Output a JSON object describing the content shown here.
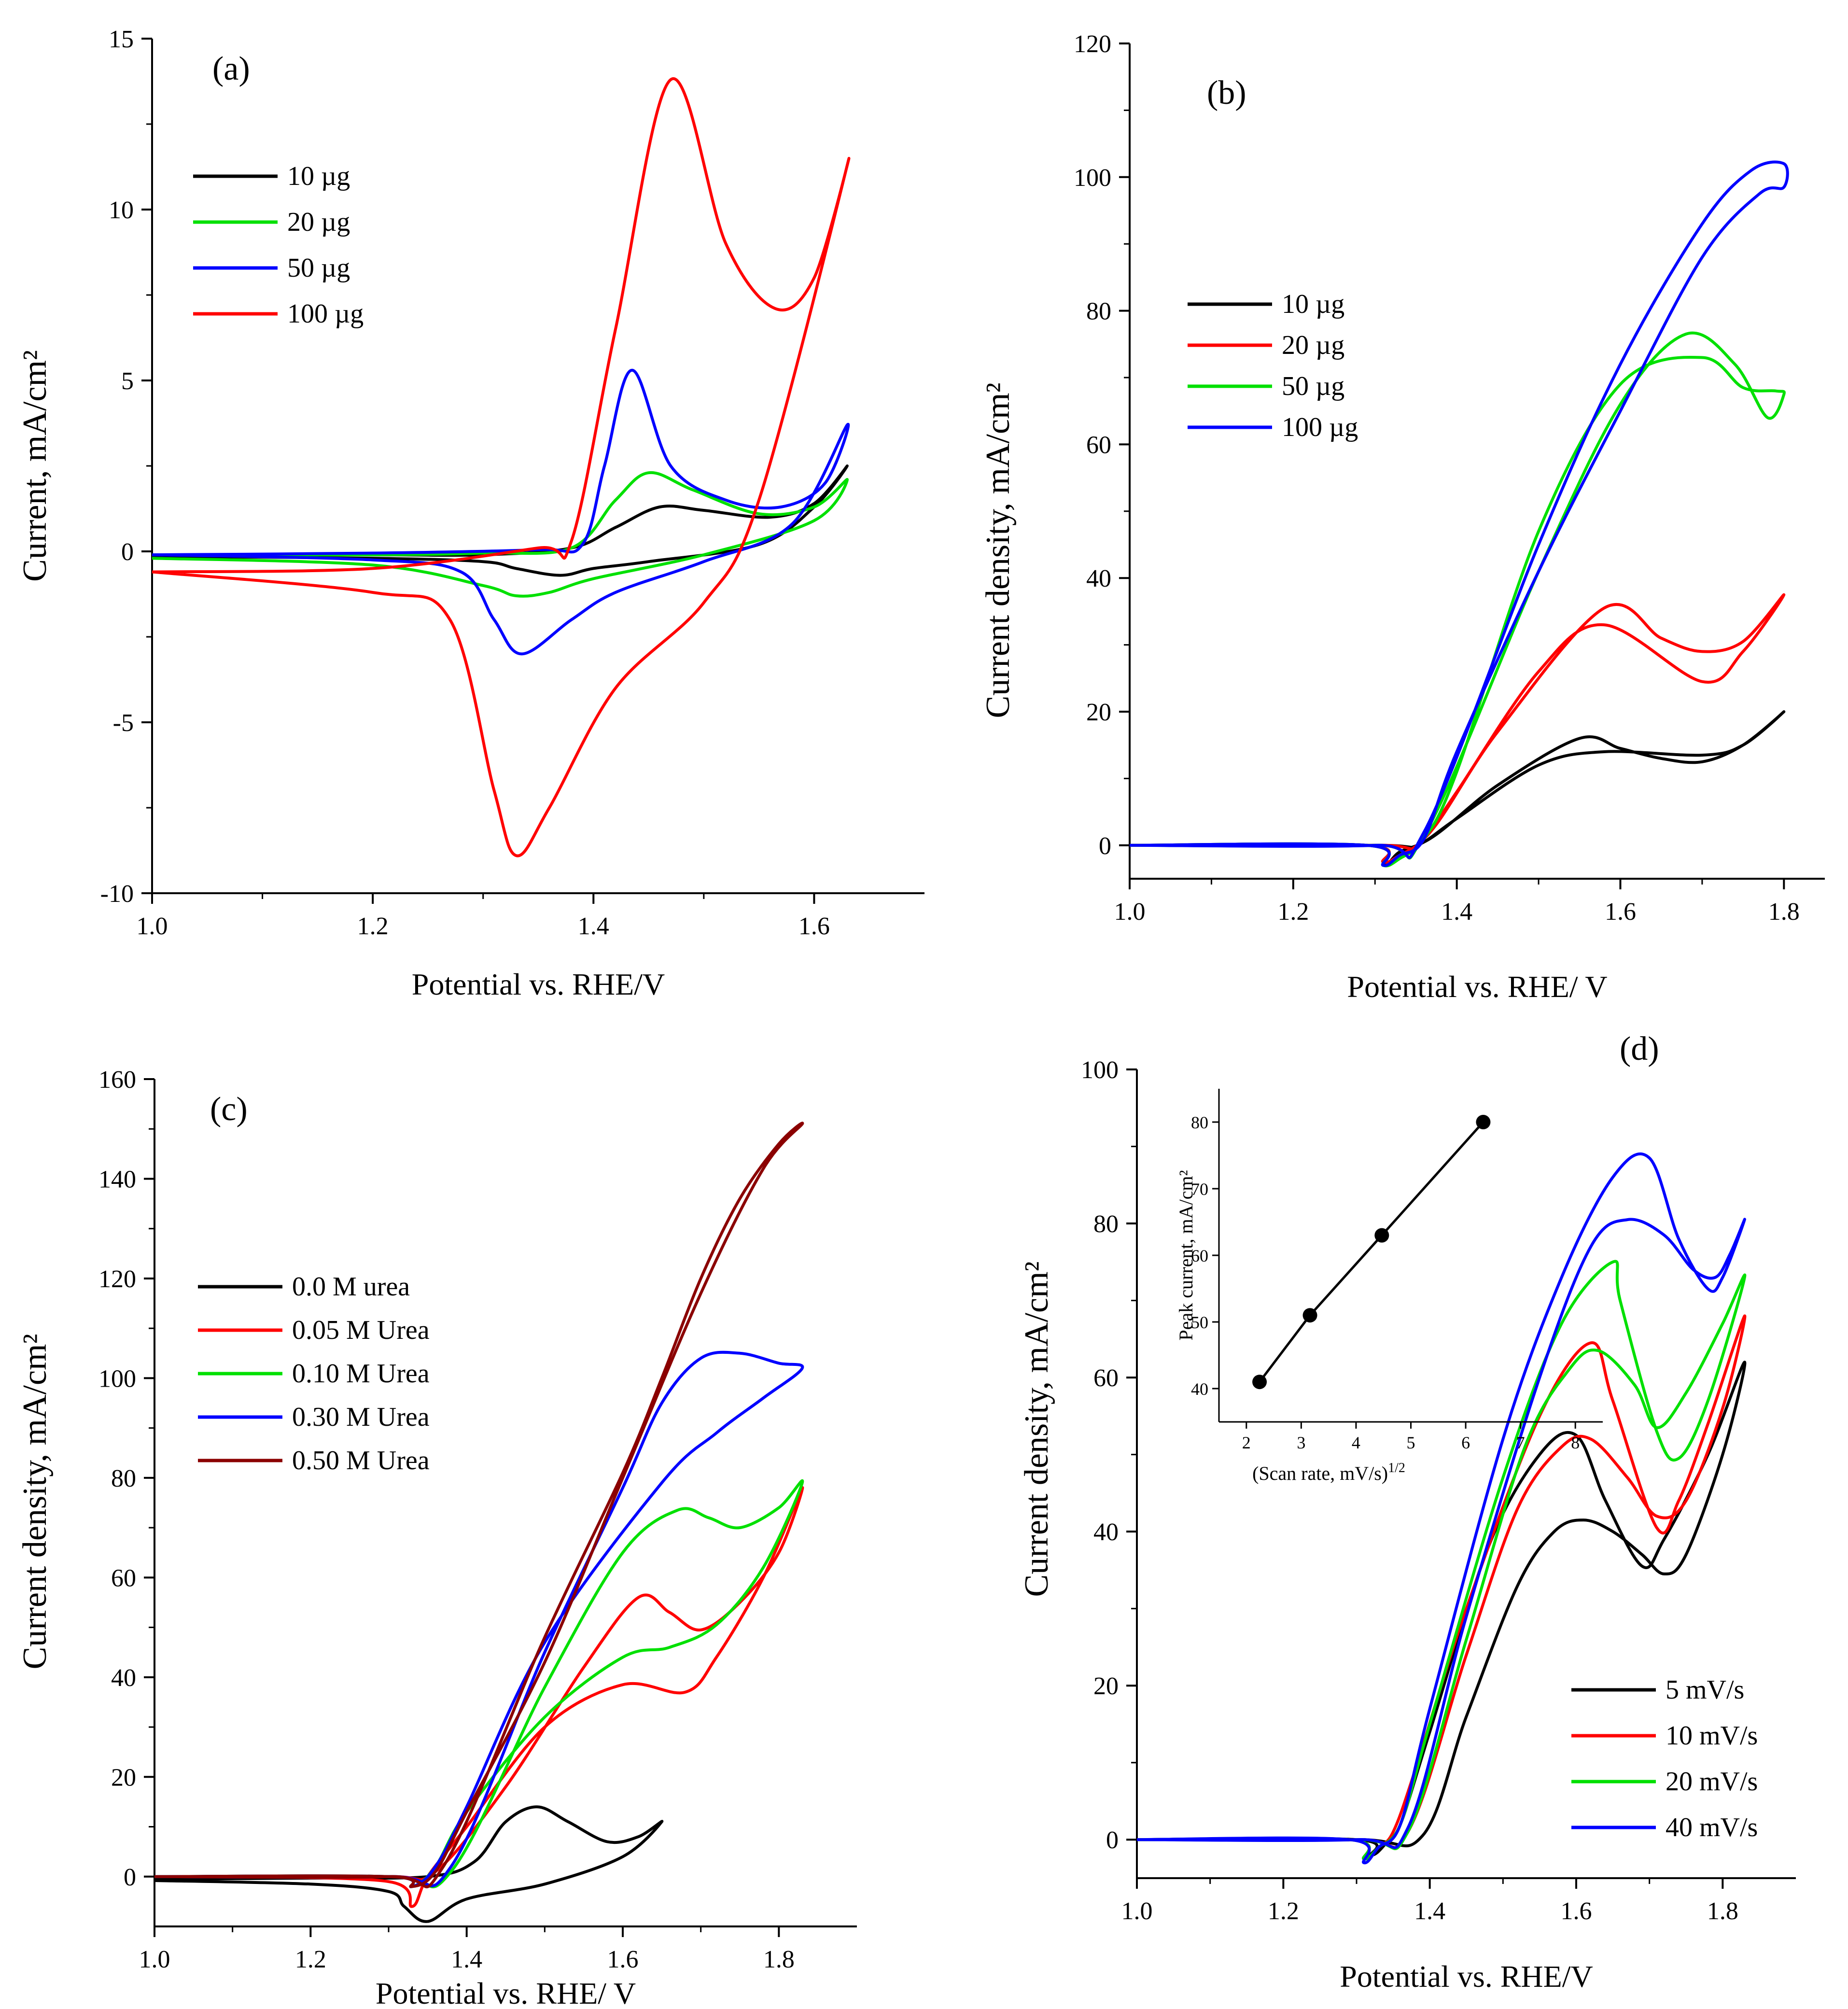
{
  "chart_data": [
    {
      "panel": "(a)",
      "type": "line",
      "title": "",
      "xlabel": "Potential vs. RHE/V",
      "ylabel": "Current, mA/cm²",
      "xlim": [
        1.0,
        1.7
      ],
      "ylim": [
        -10,
        15
      ],
      "xticks": [
        1.0,
        1.2,
        1.4,
        1.6
      ],
      "xtick_labels": [
        "1.0",
        "1.2",
        "1.4",
        "1.6"
      ],
      "yticks": [
        -10,
        -5,
        0,
        5,
        10,
        15
      ],
      "ytick_labels": [
        "-10",
        "-5",
        "0",
        "5",
        "10",
        "15"
      ],
      "legend": "top-left",
      "series": [
        {
          "name": "10 µg",
          "color": "#000000",
          "x": [
            1.0,
            1.2,
            1.3,
            1.38,
            1.42,
            1.46,
            1.5,
            1.56,
            1.6,
            1.63,
            1.6,
            1.55,
            1.45,
            1.4,
            1.37,
            1.33,
            1.3,
            1.2,
            1.0
          ],
          "y": [
            -0.1,
            -0.1,
            -0.1,
            0.1,
            0.7,
            1.3,
            1.2,
            1.0,
            1.4,
            2.5,
            1.3,
            0.2,
            -0.3,
            -0.5,
            -0.7,
            -0.5,
            -0.3,
            -0.2,
            -0.15
          ]
        },
        {
          "name": "20 µg",
          "color": "#00e000",
          "x": [
            1.0,
            1.2,
            1.3,
            1.38,
            1.42,
            1.45,
            1.49,
            1.55,
            1.6,
            1.63,
            1.6,
            1.5,
            1.4,
            1.36,
            1.33,
            1.3,
            1.2,
            1.0
          ],
          "y": [
            -0.1,
            -0.1,
            -0.05,
            0.1,
            1.5,
            2.3,
            1.8,
            1.1,
            1.3,
            2.1,
            0.9,
            -0.1,
            -0.8,
            -1.2,
            -1.3,
            -1.0,
            -0.4,
            -0.2
          ]
        },
        {
          "name": "50 µg",
          "color": "#0000ff",
          "x": [
            1.0,
            1.2,
            1.35,
            1.39,
            1.41,
            1.435,
            1.47,
            1.52,
            1.57,
            1.61,
            1.63,
            1.58,
            1.5,
            1.42,
            1.38,
            1.335,
            1.31,
            1.28,
            1.2,
            1.0
          ],
          "y": [
            -0.1,
            -0.05,
            0.05,
            0.2,
            2.5,
            5.3,
            2.5,
            1.5,
            1.3,
            2.0,
            3.7,
            0.8,
            -0.3,
            -1.2,
            -2.0,
            -3.0,
            -2.0,
            -0.6,
            -0.25,
            -0.1
          ]
        },
        {
          "name": "100 µg",
          "color": "#ff0000",
          "x": [
            1.0,
            1.2,
            1.35,
            1.38,
            1.42,
            1.47,
            1.52,
            1.565,
            1.6,
            1.63,
            1.55,
            1.5,
            1.42,
            1.36,
            1.33,
            1.31,
            1.27,
            1.2,
            1.0
          ],
          "y": [
            -0.6,
            -0.5,
            0.1,
            0.3,
            6.5,
            13.8,
            9.0,
            7.1,
            8.0,
            11.3,
            1.5,
            -1.5,
            -4.0,
            -7.5,
            -8.9,
            -7.0,
            -2.0,
            -1.2,
            -0.6
          ]
        }
      ]
    },
    {
      "panel": "(b)",
      "type": "line",
      "title": "",
      "xlabel": "Potential vs. RHE/ V",
      "ylabel": "Current density, mA/cm²",
      "xlim": [
        1.0,
        1.85
      ],
      "ylim": [
        -5,
        120
      ],
      "xticks": [
        1.0,
        1.2,
        1.4,
        1.6,
        1.8
      ],
      "xtick_labels": [
        "1.0",
        "1.2",
        "1.4",
        "1.6",
        "1.8"
      ],
      "yticks": [
        0,
        20,
        40,
        60,
        80,
        100,
        120
      ],
      "ytick_labels": [
        "0",
        "20",
        "40",
        "60",
        "80",
        "100",
        "120"
      ],
      "legend": "center-left",
      "series": [
        {
          "name": "10 µg",
          "color": "#000000",
          "x": [
            1.0,
            1.3,
            1.36,
            1.45,
            1.55,
            1.6,
            1.65,
            1.7,
            1.75,
            1.8,
            1.75,
            1.7,
            1.58,
            1.5,
            1.4,
            1.36,
            1.33,
            1.31,
            1.29,
            1.0
          ],
          "y": [
            0,
            0,
            0.5,
            9,
            16,
            14.5,
            13,
            12.5,
            15,
            20,
            15,
            13.5,
            14,
            12,
            4,
            0.5,
            -1,
            -3,
            0,
            0
          ]
        },
        {
          "name": "20 µg",
          "color": "#ff0000",
          "x": [
            1.0,
            1.3,
            1.36,
            1.45,
            1.58,
            1.65,
            1.7,
            1.75,
            1.8,
            1.75,
            1.7,
            1.58,
            1.5,
            1.4,
            1.36,
            1.33,
            1.31,
            1.29,
            1.0
          ],
          "y": [
            0,
            0,
            1,
            17,
            35.5,
            31,
            29,
            30.5,
            37.5,
            29,
            24.5,
            33,
            26,
            8,
            1,
            -1.5,
            -2.5,
            0,
            0
          ]
        },
        {
          "name": "50 µg",
          "color": "#00e000",
          "x": [
            1.0,
            1.3,
            1.36,
            1.5,
            1.6,
            1.68,
            1.74,
            1.78,
            1.8,
            1.79,
            1.75,
            1.7,
            1.6,
            1.5,
            1.4,
            1.36,
            1.33,
            1.31,
            1.29,
            1.0
          ],
          "y": [
            0,
            0,
            1.5,
            41,
            66,
            76.5,
            72,
            64,
            67.5,
            68,
            68.5,
            73,
            69,
            47,
            11,
            1,
            -2,
            -3,
            0,
            0
          ]
        },
        {
          "name": "100 µg",
          "color": "#0000ff",
          "x": [
            1.0,
            1.3,
            1.36,
            1.5,
            1.6,
            1.7,
            1.76,
            1.8,
            1.8,
            1.77,
            1.7,
            1.6,
            1.5,
            1.4,
            1.36,
            1.33,
            1.31,
            1.29,
            1.0
          ],
          "y": [
            0,
            0,
            2,
            45,
            72,
            93,
            101,
            102,
            98.5,
            97.5,
            88,
            65,
            41,
            14,
            1,
            -1.5,
            -3,
            0,
            0
          ]
        }
      ]
    },
    {
      "panel": "(c)",
      "type": "line",
      "title": "",
      "xlabel": "Potential vs. RHE/ V",
      "ylabel": "Current density, mA/cm²",
      "xlim": [
        1.0,
        1.9
      ],
      "ylim": [
        -10,
        160
      ],
      "xticks": [
        1.0,
        1.2,
        1.4,
        1.6,
        1.8
      ],
      "xtick_labels": [
        "1.0",
        "1.2",
        "1.4",
        "1.6",
        "1.8"
      ],
      "yticks": [
        0,
        20,
        40,
        60,
        80,
        100,
        120,
        140,
        160
      ],
      "ytick_labels": [
        "0",
        "20",
        "40",
        "60",
        "80",
        "100",
        "120",
        "140",
        "160"
      ],
      "legend": "center-left",
      "series": [
        {
          "name": "0.0 M urea",
          "color": "#000000",
          "x": [
            1.0,
            1.2,
            1.35,
            1.41,
            1.45,
            1.49,
            1.53,
            1.58,
            1.62,
            1.65,
            1.6,
            1.5,
            1.4,
            1.35,
            1.32,
            1.3,
            1.2,
            1.0
          ],
          "y": [
            -0.5,
            -0.3,
            0,
            3,
            11,
            14,
            11,
            7,
            8,
            11,
            4,
            -1.5,
            -4.5,
            -9,
            -6,
            -3,
            -1.5,
            -0.8
          ]
        },
        {
          "name": "0.05 M Urea",
          "color": "#ff0000",
          "x": [
            1.08,
            1.3,
            1.36,
            1.45,
            1.55,
            1.62,
            1.66,
            1.7,
            1.75,
            1.8,
            1.83,
            1.78,
            1.72,
            1.68,
            1.6,
            1.5,
            1.4,
            1.35,
            1.33,
            1.3,
            1.08
          ],
          "y": [
            0,
            0,
            1,
            18,
            42,
            56,
            53,
            49.5,
            55,
            65,
            78,
            60,
            44,
            37,
            38.5,
            30,
            10,
            0,
            -6,
            -1,
            0
          ]
        },
        {
          "name": "0.10 M Urea",
          "color": "#00e000",
          "x": [
            1.0,
            1.3,
            1.38,
            1.5,
            1.6,
            1.67,
            1.71,
            1.75,
            1.8,
            1.83,
            1.78,
            1.72,
            1.66,
            1.6,
            1.5,
            1.4,
            1.36,
            1.33,
            1.3,
            1.0
          ],
          "y": [
            0,
            0,
            1,
            38,
            65,
            73.5,
            72,
            70,
            74,
            79,
            62,
            50.5,
            46,
            44,
            32,
            13,
            2,
            -2,
            0,
            0
          ]
        },
        {
          "name": "0.30 M Urea",
          "color": "#0000ff",
          "x": [
            1.0,
            1.3,
            1.38,
            1.5,
            1.6,
            1.65,
            1.7,
            1.75,
            1.8,
            1.83,
            1.78,
            1.72,
            1.65,
            1.5,
            1.4,
            1.36,
            1.33,
            1.3,
            1.0
          ],
          "y": [
            0,
            0,
            2,
            45,
            78,
            95,
            104,
            105,
            103,
            102,
            96,
            89,
            79,
            47,
            14,
            2,
            -2,
            0,
            0
          ]
        },
        {
          "name": "0.50 M Urea",
          "color": "#8b0000",
          "x": [
            1.0,
            1.3,
            1.37,
            1.5,
            1.6,
            1.65,
            1.7,
            1.75,
            1.8,
            1.83,
            1.78,
            1.7,
            1.6,
            1.5,
            1.4,
            1.36,
            1.33,
            1.3,
            1.0
          ],
          "y": [
            0,
            0,
            2,
            48,
            81,
            100,
            120,
            136,
            147,
            151,
            142,
            117,
            80,
            43,
            13,
            1,
            -2,
            0,
            0
          ]
        }
      ]
    },
    {
      "panel": "(d)",
      "type": "line",
      "title": "",
      "xlabel": "Potential vs. RHE/V",
      "ylabel": "Current density, mA/cm²",
      "xlim": [
        1.0,
        1.9
      ],
      "ylim": [
        -5,
        100
      ],
      "xticks": [
        1.0,
        1.2,
        1.4,
        1.6,
        1.8
      ],
      "xtick_labels": [
        "1.0",
        "1.2",
        "1.4",
        "1.6",
        "1.8"
      ],
      "yticks": [
        0,
        20,
        40,
        60,
        80,
        100
      ],
      "ytick_labels": [
        "0",
        "20",
        "40",
        "60",
        "80",
        "100"
      ],
      "legend": "bottom-right",
      "series": [
        {
          "name": "5 mV/s",
          "color": "#000000",
          "x": [
            1.0,
            1.3,
            1.39,
            1.45,
            1.52,
            1.57,
            1.61,
            1.65,
            1.69,
            1.72,
            1.75,
            1.8,
            1.83,
            1.78,
            1.72,
            1.69,
            1.64,
            1.6,
            1.55,
            1.48,
            1.4,
            1.36,
            1.34,
            1.32,
            1.3,
            1.0
          ],
          "y": [
            0,
            0,
            0.5,
            16,
            33,
            40,
            41.5,
            40,
            37,
            34.5,
            37,
            50,
            62,
            50,
            39,
            35.5,
            44,
            52.5,
            50,
            38,
            14,
            2,
            -0.5,
            -2,
            0,
            0
          ]
        },
        {
          "name": "10 mV/s",
          "color": "#ff0000",
          "x": [
            1.0,
            1.3,
            1.37,
            1.45,
            1.52,
            1.58,
            1.62,
            1.67,
            1.71,
            1.75,
            1.8,
            1.83,
            1.78,
            1.74,
            1.71,
            1.65,
            1.62,
            1.55,
            1.45,
            1.38,
            1.35,
            1.33,
            1.31,
            1.29,
            1.0
          ],
          "y": [
            0,
            0,
            1,
            24,
            43,
            51,
            52,
            47,
            42,
            44,
            56,
            68,
            54,
            44,
            40.5,
            57,
            64.5,
            55,
            30,
            9,
            1,
            -1,
            -2.5,
            0,
            0
          ]
        },
        {
          "name": "20 mV/s",
          "color": "#00e000",
          "x": [
            1.0,
            1.3,
            1.37,
            1.45,
            1.53,
            1.59,
            1.63,
            1.68,
            1.71,
            1.75,
            1.8,
            1.83,
            1.78,
            1.74,
            1.71,
            1.66,
            1.65,
            1.58,
            1.5,
            1.4,
            1.36,
            1.33,
            1.31,
            1.29,
            1.0
          ],
          "y": [
            0,
            0,
            1,
            26,
            51,
            61,
            63.5,
            59,
            53.5,
            58,
            67,
            73,
            57,
            49.5,
            53,
            70,
            75,
            67,
            47,
            15,
            2,
            -1,
            -2.5,
            0,
            0
          ]
        },
        {
          "name": "40 mV/s",
          "color": "#0000ff",
          "x": [
            1.0,
            1.3,
            1.37,
            1.45,
            1.55,
            1.62,
            1.67,
            1.72,
            1.76,
            1.79,
            1.81,
            1.83,
            1.8,
            1.78,
            1.74,
            1.7,
            1.65,
            1.58,
            1.5,
            1.4,
            1.36,
            1.33,
            1.31,
            1.29,
            1.0
          ],
          "y": [
            0,
            0,
            1.5,
            29,
            60,
            77,
            80.5,
            78.5,
            74,
            73,
            76,
            80.5,
            73,
            71.5,
            78,
            88.5,
            86,
            73,
            52,
            17,
            2,
            -1,
            -3,
            0,
            0
          ]
        }
      ],
      "inset": {
        "type": "scatter",
        "xlabel": "(Scan rate, mV/s)",
        "xlabel_superscript": "1/2",
        "ylabel": "Peak current, mA/cm²",
        "xlim": [
          1.5,
          8.5
        ],
        "ylim": [
          35,
          85
        ],
        "xticks": [
          2,
          3,
          4,
          5,
          6,
          7,
          8
        ],
        "xtick_labels": [
          "2",
          "3",
          "4",
          "5",
          "6",
          "7",
          "8"
        ],
        "yticks": [
          40,
          50,
          60,
          70,
          80
        ],
        "ytick_labels": [
          "40",
          "50",
          "60",
          "70",
          "80"
        ],
        "x": [
          2.24,
          3.16,
          4.47,
          6.32
        ],
        "y": [
          41,
          51,
          63,
          80
        ]
      }
    }
  ]
}
